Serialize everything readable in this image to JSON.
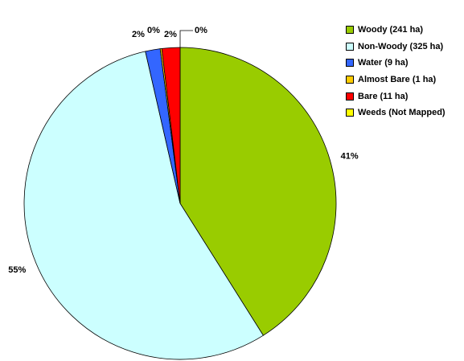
{
  "chart_data": {
    "type": "pie",
    "title": "",
    "slices": [
      {
        "label": "Woody (241 ha)",
        "value": 241,
        "percent_label": "41%",
        "color": "#99cc00"
      },
      {
        "label": "Non-Woody (325 ha)",
        "value": 325,
        "percent_label": "55%",
        "color": "#ccffff"
      },
      {
        "label": "Water (9 ha)",
        "value": 9,
        "percent_label": "2%",
        "color": "#3366ff"
      },
      {
        "label": "Almost Bare (1 ha)",
        "value": 1,
        "percent_label": "0%",
        "color": "#ffcc00"
      },
      {
        "label": "Bare (11 ha)",
        "value": 11,
        "percent_label": "2%",
        "color": "#ff0000"
      },
      {
        "label": "Weeds (Not Mapped)",
        "value": 0,
        "percent_label": "0%",
        "color": "#ffff00"
      }
    ],
    "legend_position": "top-right",
    "start_angle": "12 o'clock",
    "direction": "clockwise"
  }
}
